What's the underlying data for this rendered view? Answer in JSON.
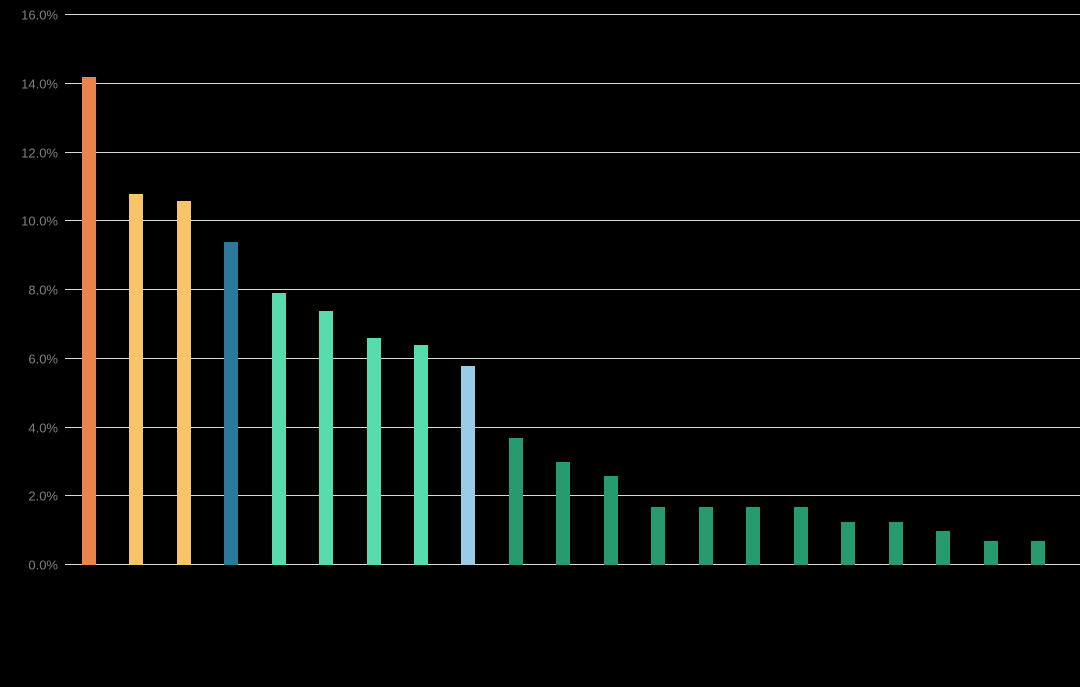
{
  "chart_data": {
    "type": "bar",
    "title": "",
    "xlabel": "",
    "ylabel": "",
    "categories": [
      "",
      "",
      "",
      "",
      "",
      "",
      "",
      "",
      "",
      "",
      "",
      "",
      "",
      "",
      "",
      "",
      "",
      "",
      "",
      "",
      ""
    ],
    "values": [
      14.2,
      10.8,
      10.6,
      9.4,
      7.9,
      7.4,
      6.6,
      6.4,
      5.8,
      3.7,
      3.0,
      2.6,
      1.7,
      1.7,
      1.7,
      1.7,
      1.25,
      1.25,
      1.0,
      0.7,
      0.7
    ],
    "bar_colors": [
      "#E8854F",
      "#F8C46A",
      "#F8C46A",
      "#2C7A9B",
      "#58DCAE",
      "#58DCAE",
      "#58DCAE",
      "#58DCAE",
      "#99CDE6",
      "#279A6F",
      "#279A6F",
      "#279A6F",
      "#279A6F",
      "#279A6F",
      "#279A6F",
      "#279A6F",
      "#279A6F",
      "#279A6F",
      "#279A6F",
      "#279A6F",
      "#279A6F"
    ],
    "ylim": [
      0,
      16
    ],
    "y_ticks": [
      "0.0%",
      "2.0%",
      "4.0%",
      "6.0%",
      "8.0%",
      "10.0%",
      "12.0%",
      "14.0%",
      "16.0%"
    ],
    "y_tick_values": [
      0,
      2,
      4,
      6,
      8,
      10,
      12,
      14,
      16
    ],
    "grid": "horizontal",
    "legend": "none",
    "background_color": "#000000",
    "gridline_color": "#D9D9D9",
    "tick_label_color": "#7F7F7F"
  }
}
